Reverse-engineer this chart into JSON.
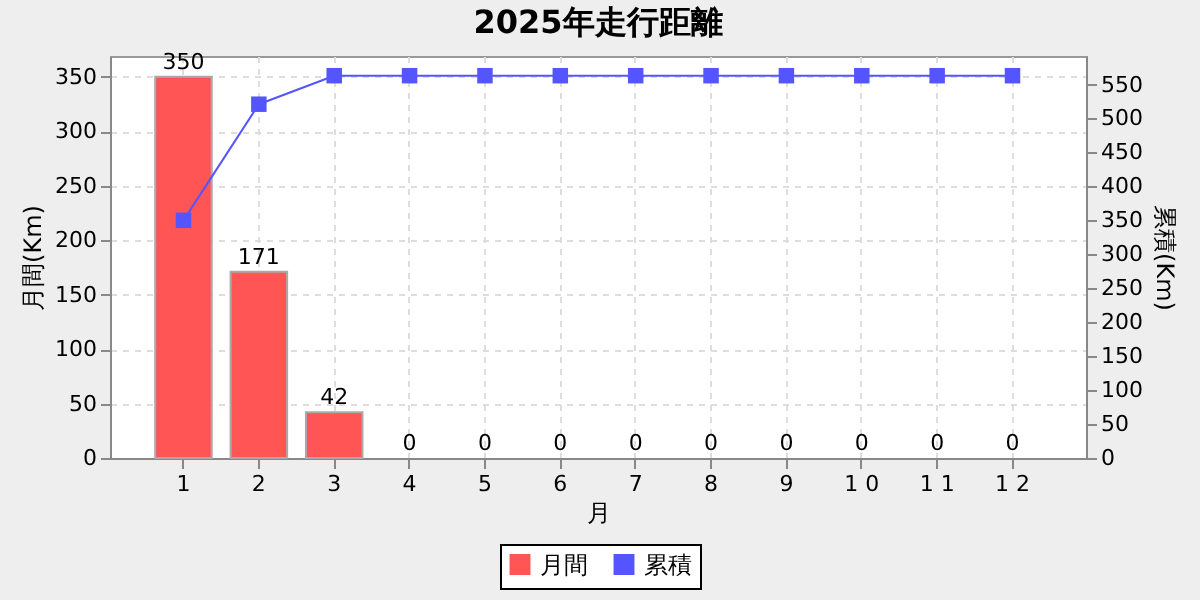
{
  "chart_data": {
    "type": "bar",
    "title": "2025年走行距離",
    "xlabel": "月",
    "ylabel": "月間(Km)",
    "y2label": "累積(Km)",
    "categories": [
      "1",
      "2",
      "3",
      "4",
      "5",
      "6",
      "7",
      "8",
      "9",
      "1 0",
      "1 1",
      "1 2"
    ],
    "series": [
      {
        "name": "月間",
        "color": "#ff5555",
        "values": [
          350,
          171,
          42,
          0,
          0,
          0,
          0,
          0,
          0,
          0,
          0,
          0
        ],
        "value_labels": [
          "350",
          "171",
          "42",
          "0",
          "0",
          "0",
          "0",
          "0",
          "0",
          "0",
          "0",
          "0"
        ]
      },
      {
        "name": "累積",
        "type": "line",
        "axis": "y2",
        "color": "#5555ff",
        "values": [
          350,
          521,
          563,
          563,
          563,
          563,
          563,
          563,
          563,
          563,
          563,
          563
        ]
      }
    ],
    "ylim": [
      0,
      369
    ],
    "yticks": [
      0,
      50,
      100,
      150,
      200,
      250,
      300,
      350
    ],
    "y2lim": [
      0,
      592
    ],
    "y2ticks": [
      0,
      50,
      100,
      150,
      200,
      250,
      300,
      350,
      400,
      450,
      500,
      550
    ],
    "grid": true,
    "legend": "bottom",
    "marker": "square"
  }
}
